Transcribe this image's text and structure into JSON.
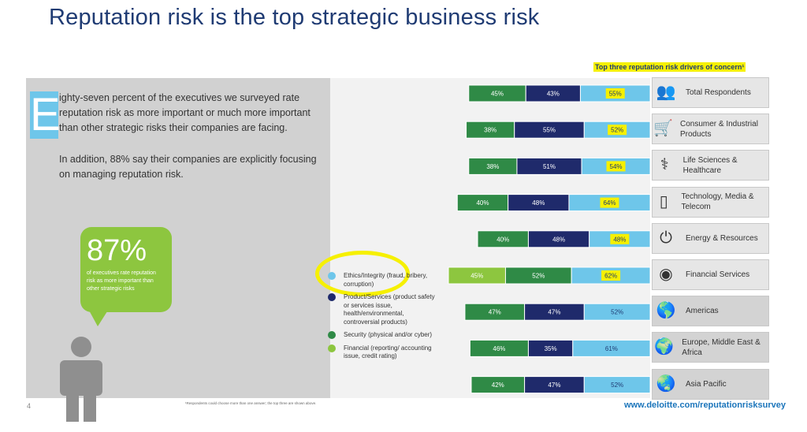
{
  "title": "Reputation risk is the top strategic business risk",
  "intro": {
    "dropcap": "E",
    "para1": "ighty-seven percent of the executives we surveyed rate reputation risk as more important or much more important than other strategic risks their companies are facing.",
    "para2": "In addition, 88% say their companies are explicitly focusing on managing reputation risk."
  },
  "callout": {
    "value": "87%",
    "text": "of executives rate reputation risk as more important than other strategic risks"
  },
  "page_number": "4",
  "footnote": "¹Respondents could choose more than one answer; the top three are shown above.",
  "url": "www.deloitte.com/reputationrisksurvey",
  "legend": [
    {
      "label": "Ethics/Integrity (fraud, bribery, corruption)",
      "color": "#6ec6ea"
    },
    {
      "label": "Product/Services (product safety or services issue, health/environmental, controversial products)",
      "color": "#1f2a6b"
    },
    {
      "label": "Security (physical and/or cyber)",
      "color": "#2f8a46"
    },
    {
      "label": "Financial (reporting/ accounting issue, credit rating)",
      "color": "#8dc63f"
    }
  ],
  "colors": {
    "financial": "#8dc63f",
    "security": "#2f8a46",
    "product": "#1f2a6b",
    "ethics": "#6ec6ea",
    "highlight": "#f6f000"
  },
  "chart_data": {
    "type": "bar",
    "orientation": "horizontal",
    "stacked": true,
    "title": "Top three reputation risk drivers of concern¹",
    "categories": [
      {
        "label": "Total Respondents",
        "icon": "people-icon"
      },
      {
        "label": "Consumer & Industrial Products",
        "icon": "cart-icon"
      },
      {
        "label": "Life Sciences & Healthcare",
        "icon": "stethoscope-icon"
      },
      {
        "label": "Technology, Media & Telecom",
        "icon": "phone-icon"
      },
      {
        "label": "Energy & Resources",
        "icon": "outlet-icon"
      },
      {
        "label": "Financial Services",
        "icon": "coins-icon"
      },
      {
        "label": "Americas",
        "icon": "americas-map-icon"
      },
      {
        "label": "Europe, Middle East & Africa",
        "icon": "emea-map-icon"
      },
      {
        "label": "Asia Pacific",
        "icon": "asia-pacific-map-icon"
      }
    ],
    "rows": [
      [
        {
          "series": "security",
          "value": 45
        },
        {
          "series": "product",
          "value": 43
        },
        {
          "series": "ethics",
          "value": 55
        }
      ],
      [
        {
          "series": "security",
          "value": 38
        },
        {
          "series": "product",
          "value": 55
        },
        {
          "series": "ethics",
          "value": 52
        }
      ],
      [
        {
          "series": "security",
          "value": 38
        },
        {
          "series": "product",
          "value": 51
        },
        {
          "series": "ethics",
          "value": 54
        }
      ],
      [
        {
          "series": "security",
          "value": 40
        },
        {
          "series": "product",
          "value": 48
        },
        {
          "series": "ethics",
          "value": 64
        }
      ],
      [
        {
          "series": "security",
          "value": 40
        },
        {
          "series": "product",
          "value": 48
        },
        {
          "series": "ethics",
          "value": 48
        }
      ],
      [
        {
          "series": "financial",
          "value": 45
        },
        {
          "series": "security",
          "value": 52
        },
        {
          "series": "ethics",
          "value": 62
        }
      ],
      [
        {
          "series": "security",
          "value": 47
        },
        {
          "series": "product",
          "value": 47
        },
        {
          "series": "ethics",
          "value": 52
        }
      ],
      [
        {
          "series": "security",
          "value": 46
        },
        {
          "series": "product",
          "value": 35
        },
        {
          "series": "ethics",
          "value": 61
        }
      ],
      [
        {
          "series": "security",
          "value": 42
        },
        {
          "series": "product",
          "value": 47
        },
        {
          "series": "ethics",
          "value": 52
        }
      ]
    ],
    "highlighted_rows": [
      0,
      1,
      2,
      3,
      4,
      5
    ],
    "unit": "%"
  }
}
